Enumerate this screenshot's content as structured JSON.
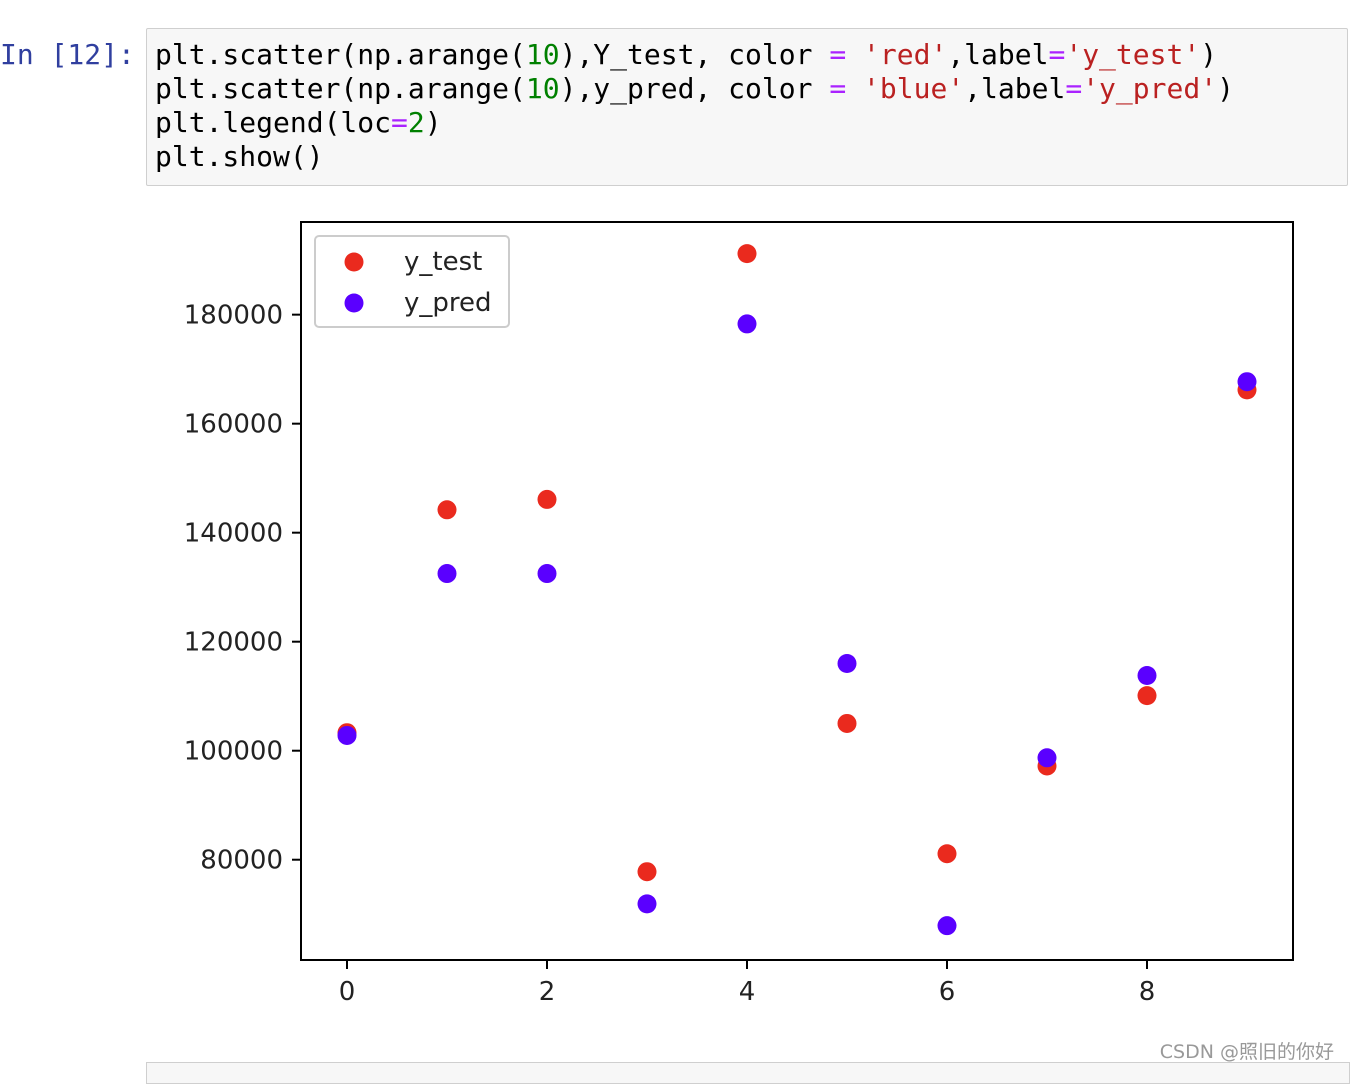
{
  "prompt": "In [12]:",
  "code": {
    "lines": [
      "plt.scatter(np.arange(10),Y_test, color = 'red',label='y_test')",
      "plt.scatter(np.arange(10),y_pred, color = 'blue',label='y_pred')",
      "plt.legend(loc=2)",
      "plt.show()"
    ]
  },
  "chart_data": {
    "type": "scatter",
    "x": [
      0,
      1,
      2,
      3,
      4,
      5,
      6,
      7,
      8,
      9
    ],
    "series": [
      {
        "name": "y_test",
        "color": "#ea2a1e",
        "values": [
          103300,
          144200,
          146100,
          77800,
          191200,
          105000,
          81100,
          97200,
          110100,
          166200
        ]
      },
      {
        "name": "y_pred",
        "color": "#5a00ff",
        "values": [
          102800,
          132500,
          132500,
          71900,
          178300,
          116000,
          67900,
          98700,
          113800,
          167700
        ]
      }
    ],
    "xlim": [
      -0.46,
      9.46
    ],
    "ylim": [
      61600,
      197000
    ],
    "xticks": [
      0,
      2,
      4,
      6,
      8
    ],
    "yticks": [
      80000,
      100000,
      120000,
      140000,
      160000,
      180000
    ],
    "legend": "upper left"
  },
  "watermark": "CSDN @照旧的你好"
}
